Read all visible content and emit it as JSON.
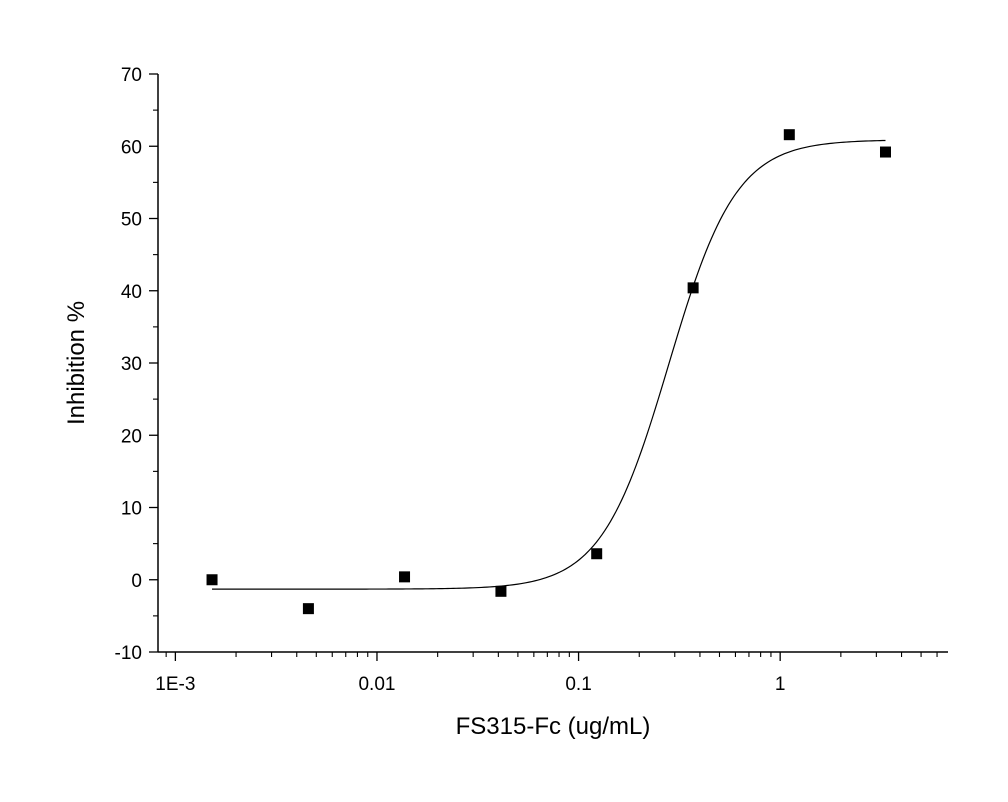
{
  "chart_data": {
    "type": "scatter",
    "title": "",
    "xlabel": "FS315-Fc (ug/mL)",
    "ylabel": "Inhibition %",
    "xscale": "log",
    "xlim": [
      0.00082,
      6.8
    ],
    "ylim": [
      -10,
      70
    ],
    "grid": false,
    "legend": "none",
    "x_ticks": [
      {
        "value": 0.001,
        "label": "1E-3"
      },
      {
        "value": 0.01,
        "label": "0.01"
      },
      {
        "value": 0.1,
        "label": "0.1"
      },
      {
        "value": 1,
        "label": "1"
      }
    ],
    "y_ticks": [
      {
        "value": -10,
        "label": "-10"
      },
      {
        "value": 0,
        "label": "0"
      },
      {
        "value": 10,
        "label": "10"
      },
      {
        "value": 20,
        "label": "20"
      },
      {
        "value": 30,
        "label": "30"
      },
      {
        "value": 40,
        "label": "40"
      },
      {
        "value": 50,
        "label": "50"
      },
      {
        "value": 60,
        "label": "60"
      },
      {
        "value": 70,
        "label": "70"
      }
    ],
    "points": [
      {
        "x": 0.00152,
        "y": 0.0
      },
      {
        "x": 0.00457,
        "y": -4.0
      },
      {
        "x": 0.0137,
        "y": 0.4
      },
      {
        "x": 0.0412,
        "y": -1.6
      },
      {
        "x": 0.123,
        "y": 3.6
      },
      {
        "x": 0.37,
        "y": 40.4
      },
      {
        "x": 1.11,
        "y": 61.6
      },
      {
        "x": 3.33,
        "y": 59.2
      }
    ],
    "fit_curve": {
      "model": "logistic",
      "bottom": -1.3,
      "top": 60.9,
      "ec50": 0.28,
      "hill": 2.6,
      "x_range": [
        0.00152,
        3.33
      ]
    },
    "marker_color": "#000000",
    "line_color": "#000000"
  }
}
